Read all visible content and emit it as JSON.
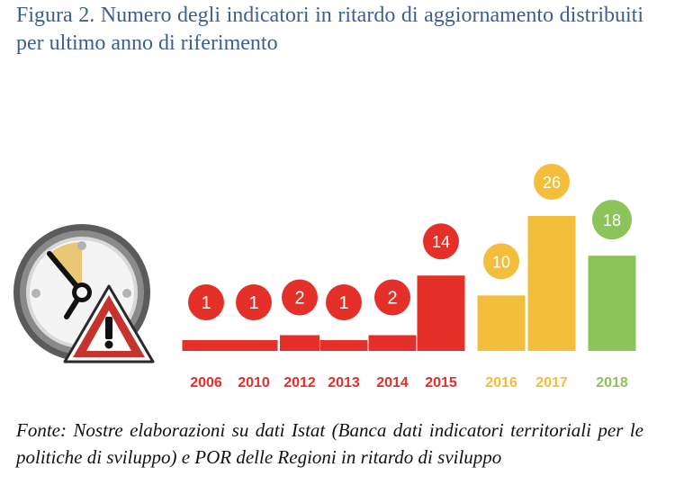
{
  "figure": {
    "title": "Figura 2. Numero degli indicatori in ritardo di aggiornamento distribuiti per ultimo anno di riferimento",
    "source": "Fonte: Nostre elaborazioni su dati Istat (Banca dati indicatori territoriali per le politiche di sviluppo) e POR delle Regioni in ritardo di sviluppo"
  },
  "icon": {
    "name": "clock-warning-icon"
  },
  "colors": {
    "red": "#e5302a",
    "yellow": "#f3be3c",
    "green": "#8dc459",
    "title": "#3b5f95"
  },
  "chart_data": {
    "type": "bar",
    "title": "",
    "xlabel": "",
    "ylabel": "",
    "categories": [
      "2006",
      "2010",
      "2012",
      "2013",
      "2014",
      "2015",
      "2016",
      "2017",
      "2018"
    ],
    "values": [
      1,
      1,
      2,
      1,
      2,
      14,
      10,
      26,
      18
    ],
    "bar_colors": [
      "#e5302a",
      "#e5302a",
      "#e5302a",
      "#e5302a",
      "#e5302a",
      "#e5302a",
      "#f3be3c",
      "#f3be3c",
      "#8dc459"
    ],
    "value_labels": [
      "1",
      "1",
      "2",
      "1",
      "2",
      "14",
      "10",
      "26",
      "18"
    ],
    "ylim": [
      0,
      26
    ],
    "grid": false,
    "legend": "none"
  }
}
